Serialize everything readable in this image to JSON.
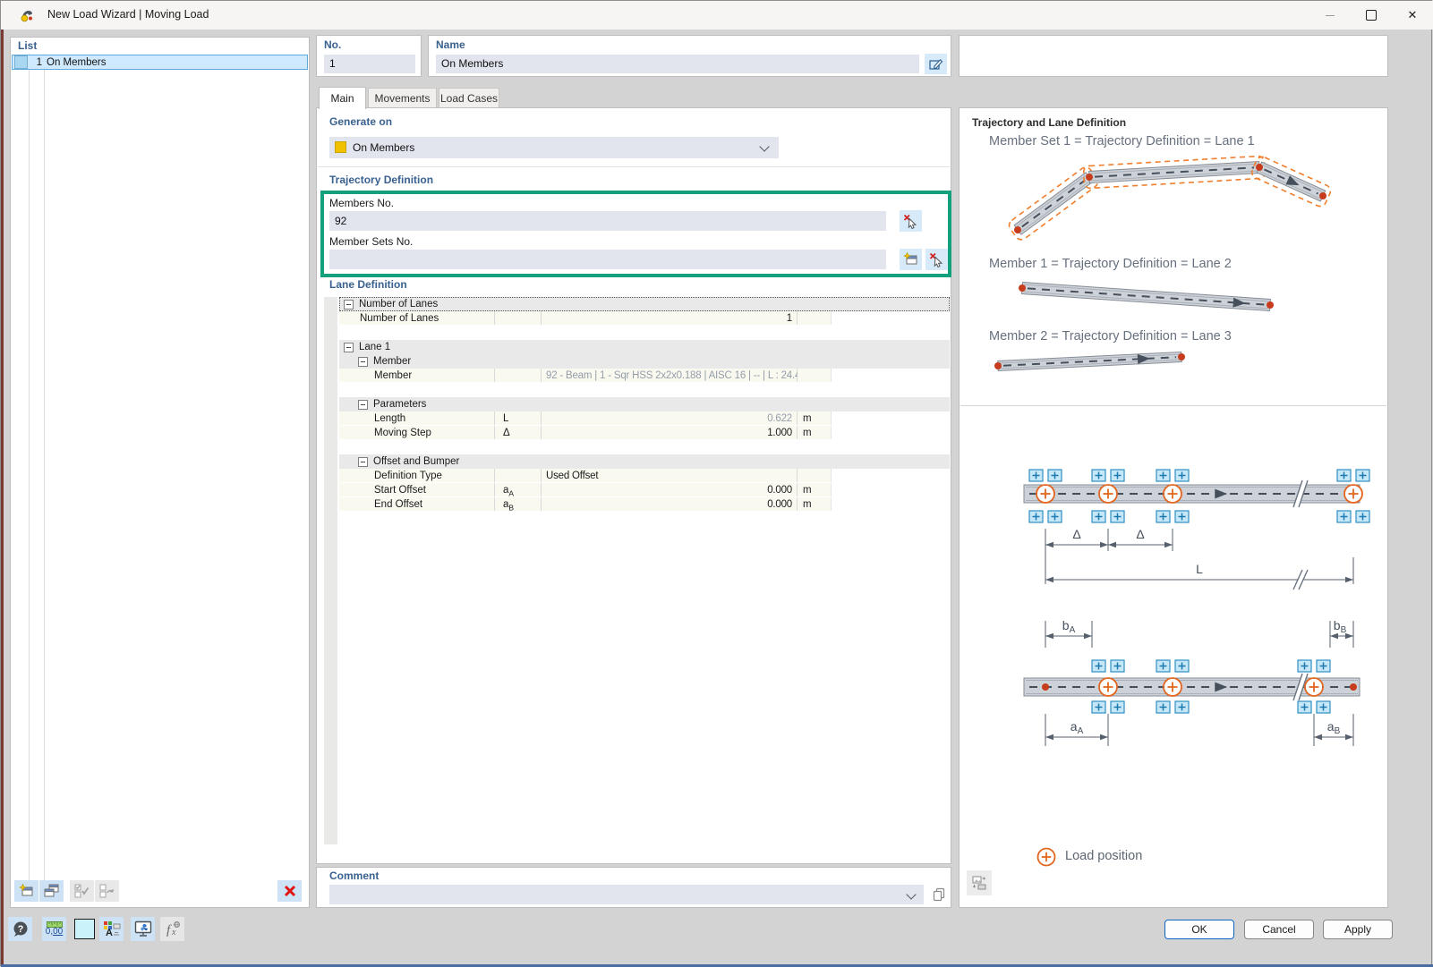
{
  "window": {
    "title": "New Load Wizard | Moving Load",
    "controls": {
      "minimize_glyph": "–",
      "close_glyph": "✕"
    }
  },
  "list": {
    "header": "List",
    "items": [
      {
        "no": "1",
        "name": "On Members",
        "selected": true
      }
    ]
  },
  "header_fields": {
    "no_label": "No.",
    "no_value": "1",
    "name_label": "Name",
    "name_value": "On Members"
  },
  "tabs": [
    {
      "label": "Main",
      "active": true
    },
    {
      "label": "Movements",
      "active": false
    },
    {
      "label": "Load Cases",
      "active": false
    }
  ],
  "main": {
    "generate_on": {
      "label": "Generate on",
      "selected": "On Members",
      "swatch_color": "#EFC100"
    },
    "trajectory": {
      "section_label": "Trajectory Definition",
      "members_label": "Members No.",
      "members_value": "92",
      "member_sets_label": "Member Sets No.",
      "member_sets_value": "",
      "highlight_color": "#13A07D"
    },
    "lane": {
      "section_label": "Lane Definition",
      "rows": [
        {
          "type": "group",
          "level": 0,
          "label": "Number of Lanes",
          "focused": true
        },
        {
          "type": "data",
          "level": 1,
          "label": "Number of Lanes",
          "symbol": "",
          "value": "1",
          "unit": "",
          "align": "right",
          "muted": false
        },
        {
          "type": "empty"
        },
        {
          "type": "group",
          "level": 0,
          "label": "Lane 1"
        },
        {
          "type": "group",
          "level": 1,
          "label": "Member"
        },
        {
          "type": "data",
          "level": 2,
          "label": "Member",
          "symbol": "",
          "value": "92 - Beam | 1 - Sqr HSS 2x2x0.188 | AISC 16 | -- | L : 24.4...",
          "unit": "",
          "align": "left",
          "muted": true
        },
        {
          "type": "empty"
        },
        {
          "type": "group",
          "level": 1,
          "label": "Parameters"
        },
        {
          "type": "data",
          "level": 2,
          "label": "Length",
          "symbol": "L",
          "value": "0.622",
          "unit": "m",
          "align": "right",
          "muted": true
        },
        {
          "type": "data",
          "level": 2,
          "label": "Moving Step",
          "symbol": "Δ",
          "value": "1.000",
          "unit": "m",
          "align": "right",
          "muted": false
        },
        {
          "type": "empty"
        },
        {
          "type": "group",
          "level": 1,
          "label": "Offset and Bumper"
        },
        {
          "type": "data",
          "level": 2,
          "label": "Definition Type",
          "symbol": "",
          "value": "Used Offset",
          "unit": "",
          "align": "left",
          "muted": false
        },
        {
          "type": "data",
          "level": 2,
          "label": "Start Offset",
          "symbol": "a",
          "symbol_sub": "A",
          "value": "0.000",
          "unit": "m",
          "align": "right",
          "muted": false
        },
        {
          "type": "data",
          "level": 2,
          "label": "End Offset",
          "symbol": "a",
          "symbol_sub": "B",
          "value": "0.000",
          "unit": "m",
          "align": "right",
          "muted": false
        }
      ]
    },
    "comment": {
      "label": "Comment",
      "value": ""
    }
  },
  "right": {
    "header": "Trajectory and Lane Definition",
    "captions": [
      "Member Set 1 = Trajectory Definition = Lane 1",
      "Member 1 = Trajectory Definition = Lane 2",
      "Member 2 = Trajectory Definition = Lane 3"
    ],
    "dims": {
      "delta": "Δ",
      "length": "L",
      "bA": {
        "base": "b",
        "sub": "A"
      },
      "bB": {
        "base": "b",
        "sub": "B"
      },
      "aA": {
        "base": "a",
        "sub": "A"
      },
      "aB": {
        "base": "a",
        "sub": "B"
      }
    },
    "legend": "Load position"
  },
  "footer": {
    "ok": "OK",
    "cancel": "Cancel",
    "apply": "Apply",
    "help_glyph": "?",
    "units_icon": {
      "pre": "0,",
      "underlined": "00"
    }
  }
}
